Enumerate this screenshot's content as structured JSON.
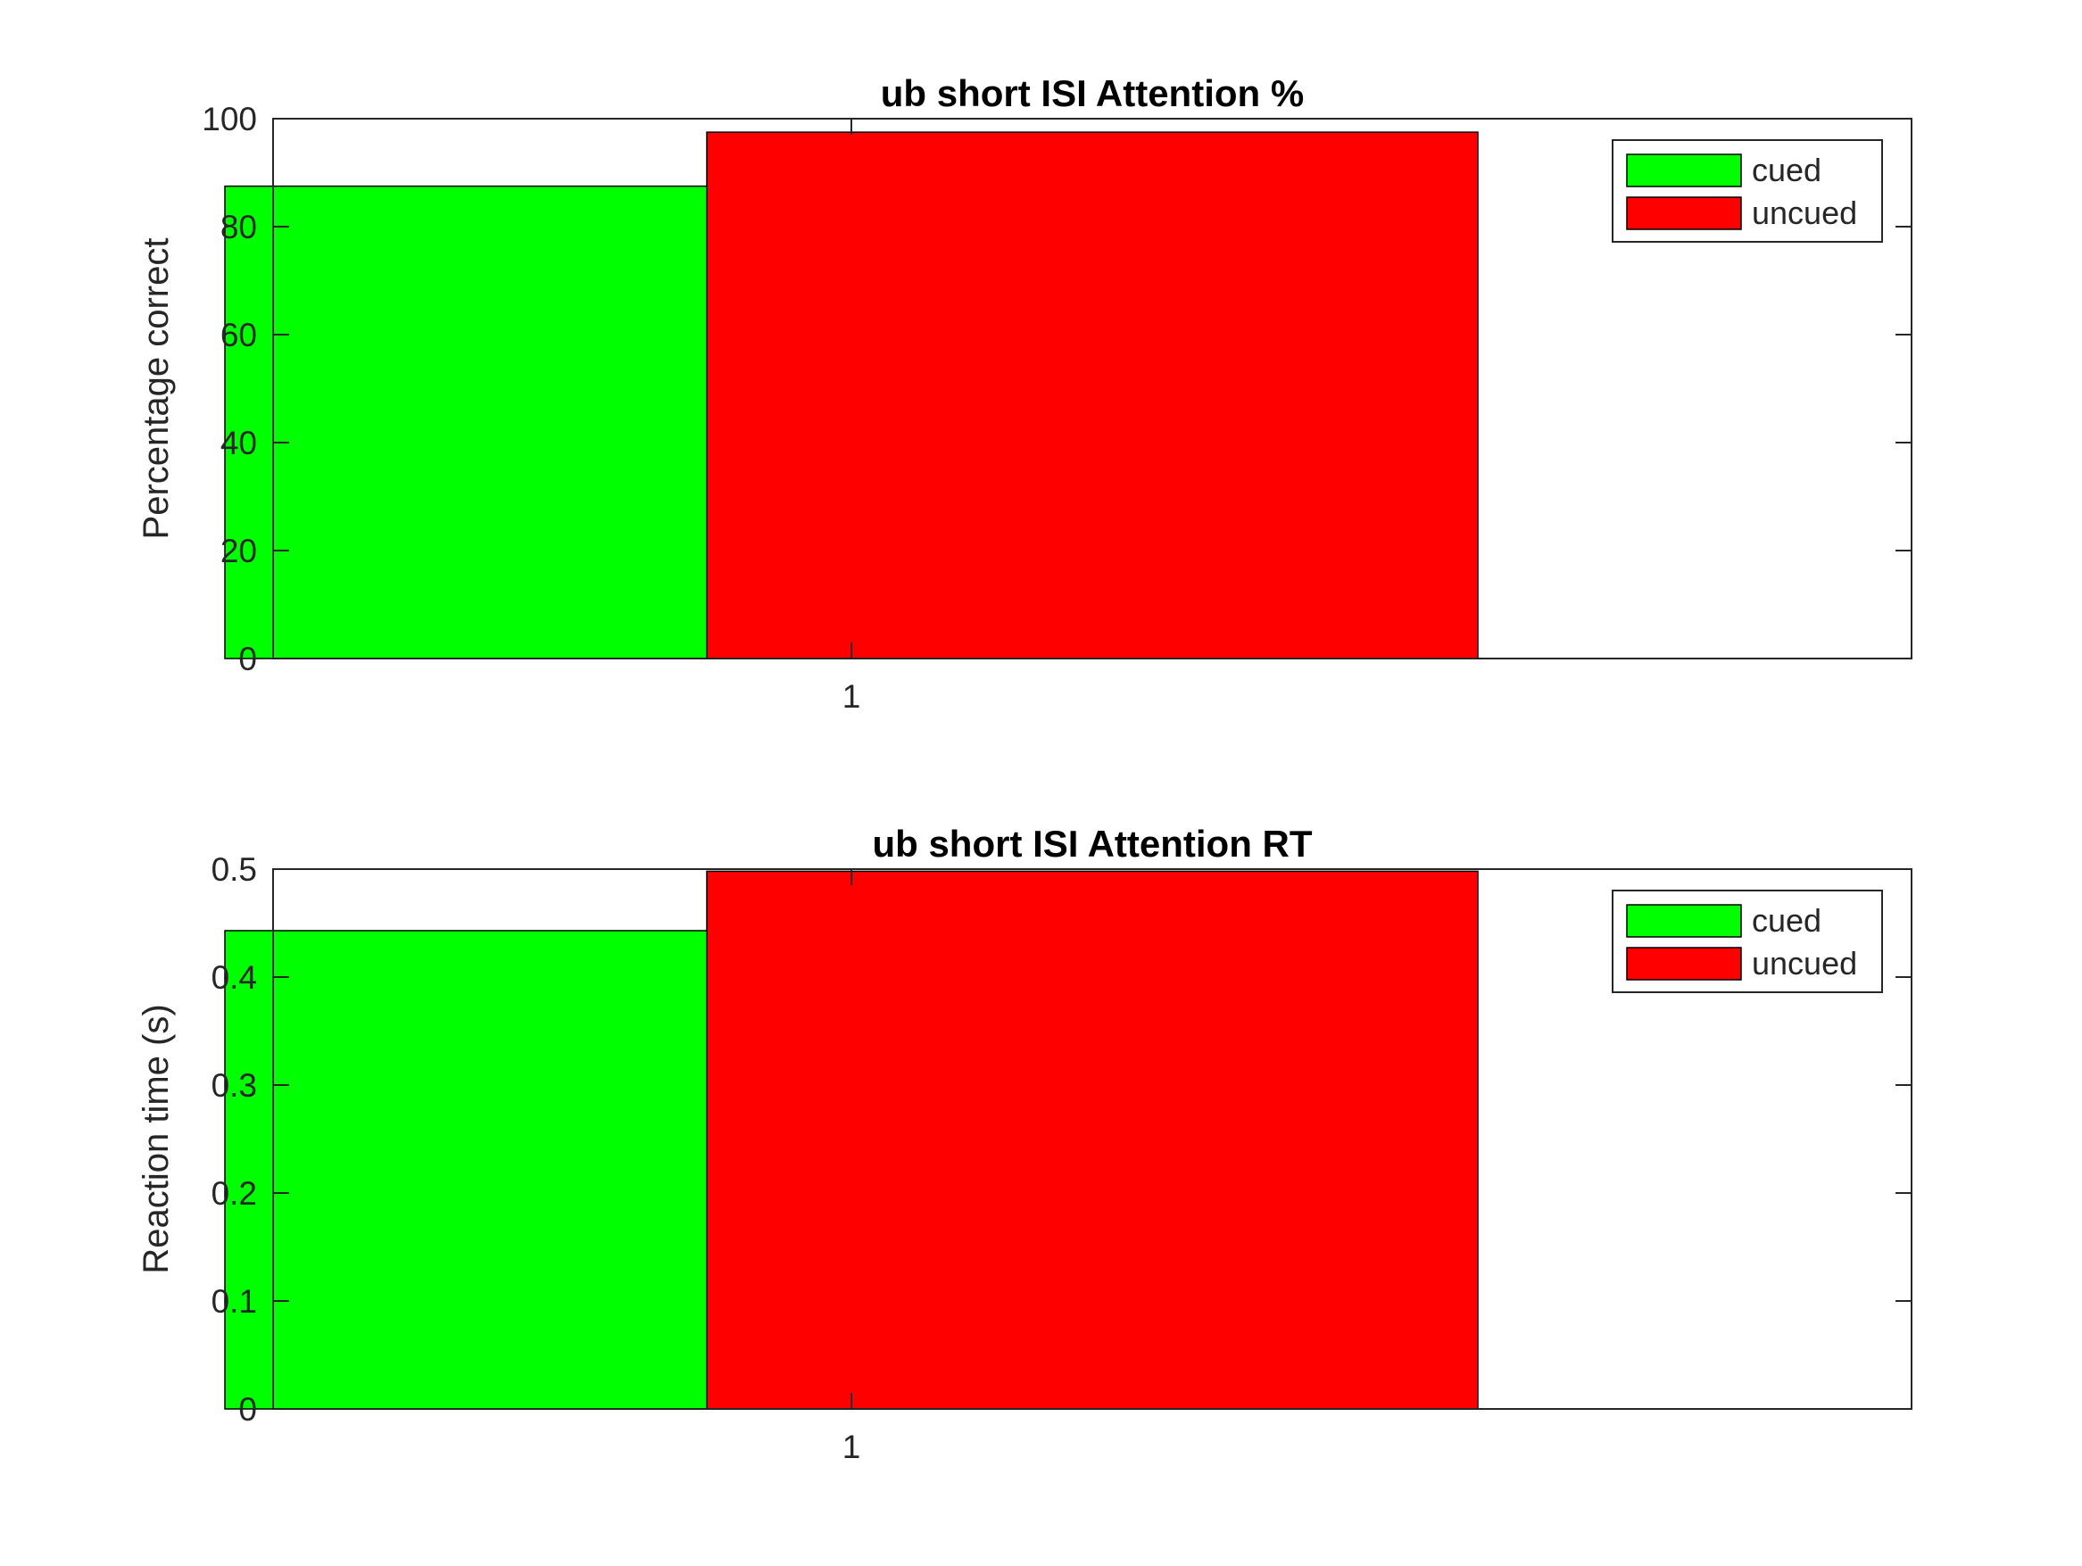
{
  "colors": {
    "cued": "#00ff00",
    "uncued": "#ff0000",
    "axis": "#262626",
    "background": "#ffffff"
  },
  "chart_data": [
    {
      "type": "bar",
      "title": "ub short ISI Attention %",
      "xlabel": "",
      "ylabel": "Percentage correct",
      "categories": [
        "1"
      ],
      "series": [
        {
          "name": "cued",
          "values": [
            87.5
          ],
          "color": "#00ff00"
        },
        {
          "name": "uncued",
          "values": [
            97.5
          ],
          "color": "#ff0000"
        }
      ],
      "ylim": [
        0,
        100
      ],
      "yticks": [
        0,
        20,
        40,
        60,
        80,
        100
      ],
      "ytick_labels": [
        "0",
        "20",
        "40",
        "60",
        "80",
        "100"
      ],
      "xlim": [
        0.4,
        2.1
      ],
      "grid": false,
      "legend": {
        "position": "top-right",
        "entries": [
          "cued",
          "uncued"
        ]
      }
    },
    {
      "type": "bar",
      "title": "ub short ISI Attention RT",
      "xlabel": "",
      "ylabel": "Reaction time (s)",
      "categories": [
        "1"
      ],
      "series": [
        {
          "name": "cued",
          "values": [
            0.443
          ],
          "color": "#00ff00"
        },
        {
          "name": "uncued",
          "values": [
            0.498
          ],
          "color": "#ff0000"
        }
      ],
      "ylim": [
        0,
        0.5
      ],
      "yticks": [
        0,
        0.1,
        0.2,
        0.3,
        0.4,
        0.5
      ],
      "ytick_labels": [
        "0",
        "0.1",
        "0.2",
        "0.3",
        "0.4",
        "0.5"
      ],
      "xlim": [
        0.4,
        2.1
      ],
      "grid": false,
      "legend": {
        "position": "top-right",
        "entries": [
          "cued",
          "uncued"
        ]
      }
    }
  ]
}
